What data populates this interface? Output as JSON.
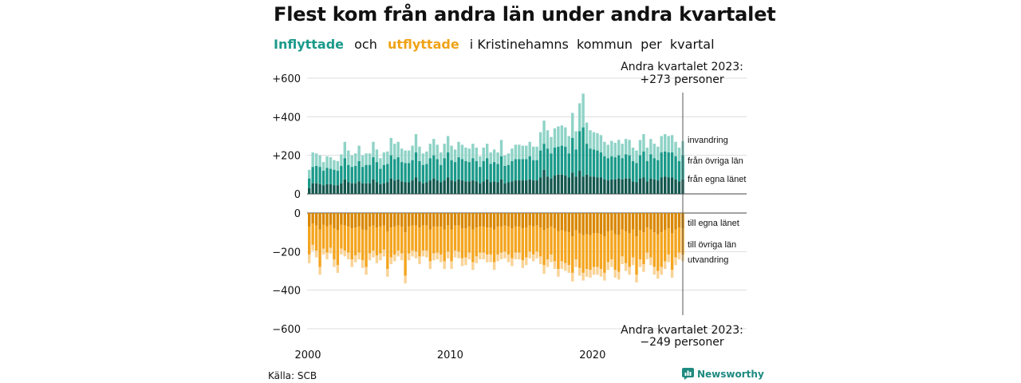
{
  "title": "Flest kom från andra län under andra kvartalet",
  "subtitle": {
    "in_word": "Inflyttade",
    "and_word": "och",
    "out_word": "utflyttade",
    "rest": "i Kristinehamns  kommun  per  kvartal"
  },
  "source": "Källa: SCB",
  "brand": "Newsworthy",
  "colors": {
    "in_dark": "#14584f",
    "in_mid": "#1a9a8a",
    "in_light": "#8fd3c7",
    "out_dark": "#d98700",
    "out_mid": "#f4a51f",
    "out_light": "#f9d396",
    "brand": "#1f8a80"
  },
  "chart_data": {
    "type": "bar",
    "x_start_year": 2000,
    "quarters_per_year": 4,
    "xticks": [
      {
        "label": "2000",
        "year": 2000
      },
      {
        "label": "2010",
        "year": 2010
      },
      {
        "label": "2020",
        "year": 2020
      }
    ],
    "yticks_top": [
      {
        "label": "+600",
        "value": 600
      },
      {
        "label": "+400",
        "value": 400
      },
      {
        "label": "+200",
        "value": 200
      },
      {
        "label": "0",
        "value": 0
      }
    ],
    "yticks_bottom": [
      {
        "label": "0",
        "value": 0
      },
      {
        "label": "−200",
        "value": -200
      },
      {
        "label": "−400",
        "value": -400
      },
      {
        "label": "−600",
        "value": -600
      }
    ],
    "ylim": [
      -600,
      600
    ],
    "top_series_labels": [
      "invandring",
      "från övriga län",
      "från egna länet"
    ],
    "bottom_series_labels": [
      "till egna länet",
      "till övriga län",
      "utvandring"
    ],
    "annotation_top": {
      "line1": "Andra kvartalet 2023:",
      "line2": "+273 personer"
    },
    "annotation_bottom": {
      "line1": "Andra kvartalet 2023:",
      "line2": "−249 personer"
    },
    "inflow_total": [
      125,
      215,
      210,
      200,
      165,
      195,
      190,
      175,
      170,
      205,
      270,
      225,
      200,
      210,
      250,
      200,
      210,
      210,
      270,
      230,
      185,
      215,
      220,
      290,
      260,
      270,
      235,
      225,
      225,
      250,
      310,
      245,
      210,
      220,
      260,
      285,
      255,
      215,
      260,
      300,
      250,
      230,
      270,
      255,
      240,
      235,
      260,
      240,
      195,
      240,
      260,
      215,
      230,
      215,
      280,
      200,
      210,
      235,
      255,
      255,
      250,
      250,
      270,
      245,
      245,
      320,
      380,
      330,
      295,
      340,
      350,
      355,
      345,
      300,
      420,
      325,
      470,
      520,
      370,
      330,
      320,
      315,
      305,
      270,
      255,
      275,
      265,
      280,
      260,
      285,
      280,
      240,
      225,
      280,
      310,
      240,
      285,
      260,
      245,
      300,
      310,
      300,
      305,
      270,
      240,
      273
    ],
    "inflow_other": [
      80,
      140,
      145,
      140,
      120,
      135,
      130,
      125,
      120,
      145,
      185,
      150,
      140,
      145,
      170,
      140,
      150,
      150,
      190,
      165,
      130,
      150,
      155,
      200,
      180,
      190,
      165,
      160,
      160,
      175,
      215,
      170,
      150,
      155,
      185,
      200,
      180,
      150,
      185,
      215,
      175,
      165,
      190,
      180,
      170,
      165,
      185,
      170,
      140,
      170,
      185,
      155,
      165,
      155,
      195,
      145,
      150,
      170,
      180,
      180,
      180,
      180,
      195,
      175,
      175,
      225,
      260,
      235,
      210,
      240,
      245,
      250,
      245,
      210,
      290,
      230,
      325,
      345,
      260,
      235,
      230,
      225,
      215,
      195,
      185,
      195,
      190,
      200,
      185,
      205,
      200,
      170,
      160,
      200,
      220,
      170,
      205,
      185,
      175,
      215,
      220,
      215,
      215,
      195,
      170,
      200
    ],
    "inflow_own": [
      30,
      55,
      55,
      50,
      45,
      50,
      50,
      45,
      45,
      55,
      75,
      60,
      55,
      55,
      65,
      55,
      55,
      55,
      75,
      60,
      50,
      55,
      60,
      80,
      70,
      75,
      65,
      60,
      60,
      70,
      85,
      65,
      55,
      60,
      70,
      80,
      70,
      60,
      70,
      85,
      70,
      65,
      75,
      70,
      65,
      65,
      70,
      65,
      55,
      65,
      75,
      60,
      65,
      60,
      75,
      55,
      60,
      65,
      70,
      70,
      70,
      70,
      75,
      70,
      70,
      85,
      125,
      90,
      80,
      95,
      100,
      100,
      95,
      85,
      110,
      90,
      120,
      90,
      100,
      90,
      90,
      85,
      85,
      75,
      70,
      75,
      75,
      80,
      75,
      80,
      80,
      65,
      60,
      80,
      85,
      65,
      80,
      75,
      70,
      85,
      90,
      85,
      85,
      75,
      65,
      75
    ],
    "outflow_total": [
      -260,
      -195,
      -230,
      -320,
      -215,
      -240,
      -210,
      -280,
      -310,
      -215,
      -225,
      -240,
      -280,
      -255,
      -240,
      -285,
      -320,
      -245,
      -230,
      -260,
      -245,
      -225,
      -330,
      -265,
      -250,
      -225,
      -245,
      -365,
      -245,
      -225,
      -235,
      -265,
      -225,
      -230,
      -290,
      -245,
      -240,
      -255,
      -290,
      -235,
      -290,
      -230,
      -235,
      -275,
      -270,
      -240,
      -295,
      -260,
      -240,
      -240,
      -255,
      -255,
      -295,
      -250,
      -240,
      -235,
      -255,
      -275,
      -240,
      -240,
      -285,
      -270,
      -235,
      -250,
      -235,
      -265,
      -315,
      -280,
      -255,
      -290,
      -330,
      -290,
      -300,
      -310,
      -355,
      -280,
      -325,
      -350,
      -330,
      -335,
      -320,
      -320,
      -330,
      -350,
      -295,
      -280,
      -335,
      -345,
      -265,
      -300,
      -320,
      -270,
      -360,
      -280,
      -305,
      -240,
      -270,
      -320,
      -340,
      -320,
      -290,
      -255,
      -335,
      -270,
      -240,
      -249
    ],
    "outflow_other": [
      -215,
      -165,
      -195,
      -280,
      -185,
      -205,
      -180,
      -240,
      -270,
      -185,
      -195,
      -205,
      -240,
      -220,
      -205,
      -245,
      -280,
      -210,
      -195,
      -220,
      -210,
      -190,
      -290,
      -230,
      -215,
      -195,
      -210,
      -325,
      -210,
      -195,
      -200,
      -225,
      -195,
      -195,
      -250,
      -210,
      -205,
      -215,
      -250,
      -200,
      -250,
      -195,
      -200,
      -235,
      -230,
      -205,
      -255,
      -225,
      -205,
      -205,
      -215,
      -215,
      -255,
      -215,
      -205,
      -200,
      -215,
      -235,
      -205,
      -205,
      -245,
      -230,
      -200,
      -215,
      -200,
      -225,
      -270,
      -240,
      -215,
      -250,
      -290,
      -250,
      -260,
      -270,
      -310,
      -240,
      -285,
      -310,
      -290,
      -295,
      -280,
      -280,
      -290,
      -310,
      -255,
      -240,
      -295,
      -305,
      -225,
      -260,
      -280,
      -230,
      -320,
      -240,
      -265,
      -205,
      -230,
      -280,
      -300,
      -280,
      -250,
      -215,
      -295,
      -230,
      -205,
      -215
    ],
    "outflow_own": [
      -70,
      -55,
      -65,
      -85,
      -60,
      -70,
      -60,
      -80,
      -90,
      -60,
      -65,
      -70,
      -80,
      -75,
      -70,
      -85,
      -90,
      -70,
      -65,
      -75,
      -70,
      -65,
      -95,
      -75,
      -70,
      -65,
      -70,
      -100,
      -70,
      -65,
      -65,
      -75,
      -65,
      -65,
      -85,
      -70,
      -70,
      -70,
      -85,
      -65,
      -85,
      -65,
      -65,
      -80,
      -80,
      -70,
      -85,
      -75,
      -70,
      -70,
      -75,
      -75,
      -85,
      -70,
      -70,
      -65,
      -70,
      -80,
      -70,
      -70,
      -80,
      -75,
      -65,
      -70,
      -65,
      -75,
      -90,
      -80,
      -70,
      -80,
      -95,
      -90,
      -95,
      -100,
      -120,
      -90,
      -105,
      -115,
      -110,
      -115,
      -105,
      -105,
      -110,
      -120,
      -95,
      -90,
      -110,
      -115,
      -85,
      -95,
      -105,
      -85,
      -120,
      -90,
      -100,
      -75,
      -85,
      -100,
      -110,
      -100,
      -90,
      -80,
      -105,
      -85,
      -75,
      -80
    ]
  }
}
